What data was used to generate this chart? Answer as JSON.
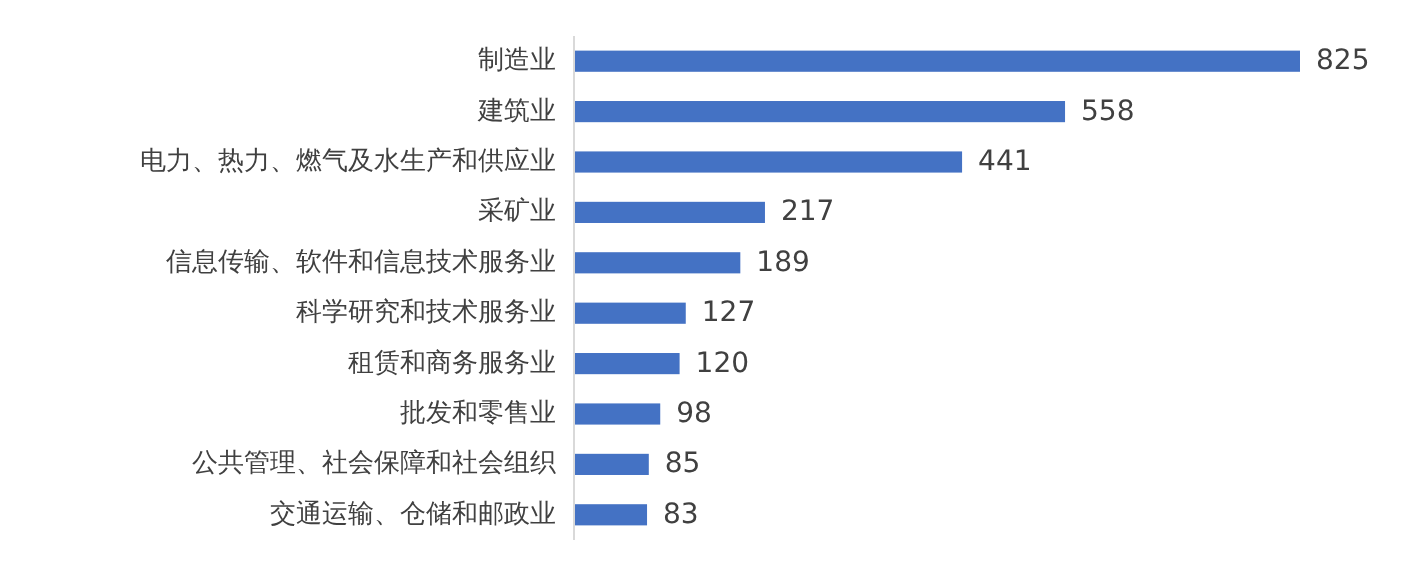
{
  "chart_data": {
    "type": "bar",
    "orientation": "horizontal",
    "categories": [
      "制造业",
      "建筑业",
      "电力、热力、燃气及水生产和供应业",
      "采矿业",
      "信息传输、软件和信息技术服务业",
      "科学研究和技术服务业",
      "租赁和商务服务业",
      "批发和零售业",
      "公共管理、社会保障和社会组织",
      "交通运输、仓储和邮政业"
    ],
    "values": [
      825,
      558,
      441,
      217,
      189,
      127,
      120,
      98,
      85,
      83
    ],
    "color": "#4472c4",
    "data_labels": true
  }
}
